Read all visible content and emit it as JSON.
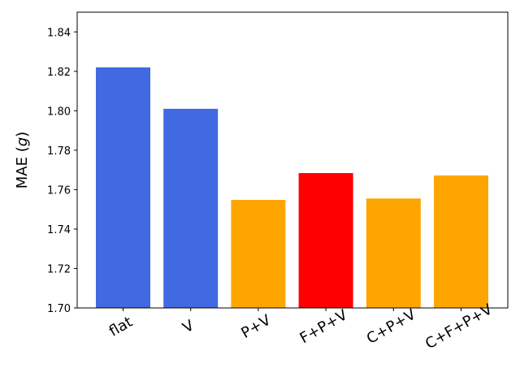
{
  "chart_data": {
    "type": "bar",
    "categories": [
      "flat",
      "V",
      "P+V",
      "F+P+V",
      "C+P+V",
      "C+F+P+V"
    ],
    "values": [
      1.822,
      1.801,
      1.7548,
      1.7684,
      1.7555,
      1.7672
    ],
    "bar_colors": [
      "#4169e1",
      "#4169e1",
      "#ffa500",
      "#ff0000",
      "#ffa500",
      "#ffa500"
    ],
    "ylim": [
      1.7,
      1.85
    ],
    "yticks": [
      1.7,
      1.72,
      1.74,
      1.76,
      1.78,
      1.8,
      1.82,
      1.84
    ],
    "ytick_labels": [
      "1.70",
      "1.72",
      "1.74",
      "1.76",
      "1.78",
      "1.80",
      "1.82",
      "1.84"
    ],
    "ylabel": "MAE (",
    "ylabel_var": "g",
    "ylabel_close": ")",
    "xlabel": "",
    "title": "",
    "grid": false
  }
}
